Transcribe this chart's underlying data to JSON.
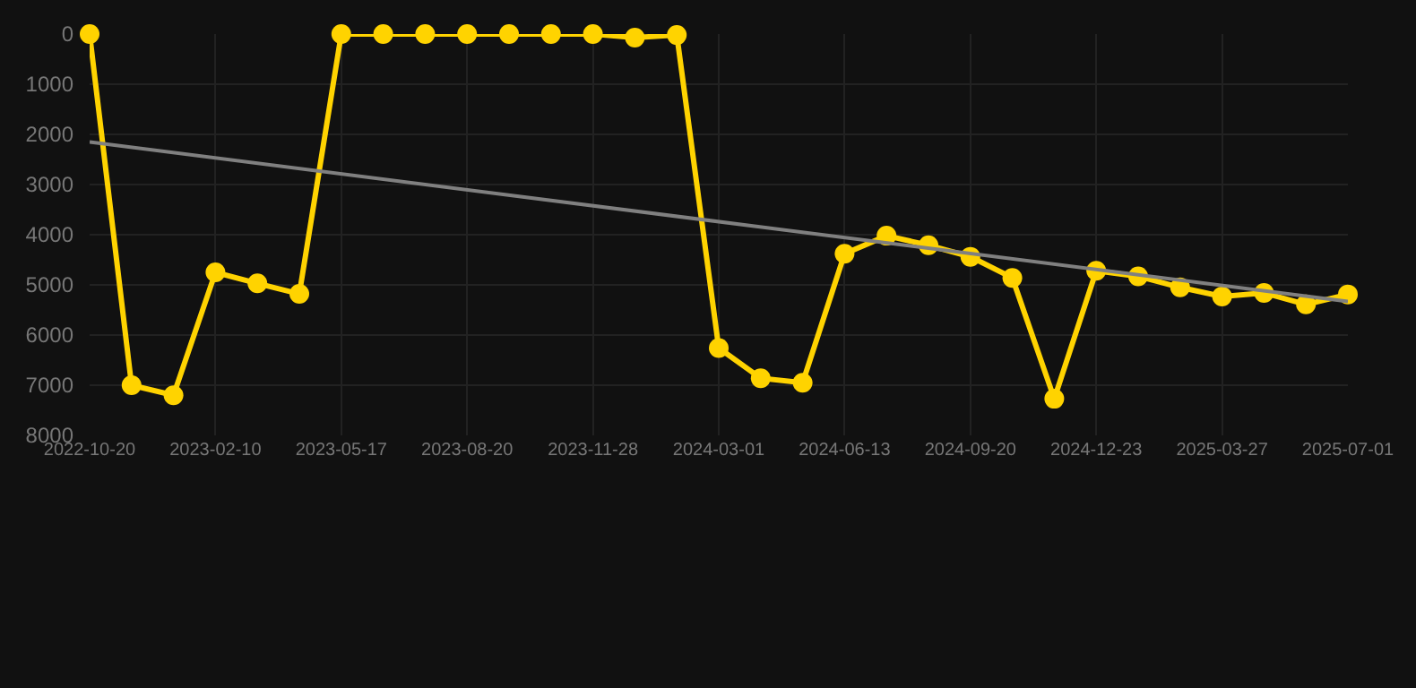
{
  "chart_data": {
    "type": "line",
    "categories": [
      "2022-10-20",
      null,
      null,
      "2023-02-10",
      null,
      null,
      "2023-05-17",
      null,
      null,
      "2023-08-20",
      null,
      null,
      "2023-11-28",
      null,
      null,
      "2024-03-01",
      null,
      null,
      "2024-06-13",
      null,
      null,
      "2024-09-20",
      null,
      null,
      "2024-12-23",
      null,
      null,
      "2025-03-27",
      null,
      null,
      "2025-07-01"
    ],
    "series": [
      {
        "color": "#ffd300",
        "marker": "circle",
        "values": [
          0,
          7000,
          7200,
          4750,
          4970,
          5180,
          0,
          0,
          0,
          0,
          0,
          0,
          0,
          70,
          20,
          6260,
          6860,
          6950,
          4380,
          4020,
          4210,
          4440,
          4860,
          7270,
          4720,
          4830,
          5050,
          5230,
          5160,
          5390,
          5190
        ]
      },
      {
        "color": "#808080",
        "marker": "none",
        "values": [
          2150,
          null,
          null,
          null,
          null,
          null,
          null,
          null,
          null,
          null,
          null,
          null,
          null,
          null,
          null,
          null,
          null,
          null,
          null,
          null,
          null,
          null,
          null,
          null,
          null,
          null,
          null,
          null,
          null,
          null,
          5330
        ]
      }
    ],
    "ylim": [
      8000,
      0
    ],
    "yticks": [
      0,
      1000,
      2000,
      3000,
      4000,
      5000,
      6000,
      7000,
      8000
    ],
    "grid": true,
    "line_style": "solid"
  }
}
